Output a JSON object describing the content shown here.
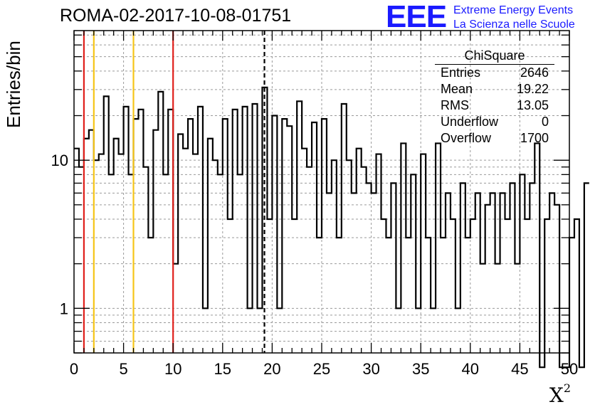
{
  "header": {
    "title": "ROMA-02-2017-10-08-01751",
    "logo_mark": "EEE",
    "logo_line1": "Extreme Energy Events",
    "logo_line2": "La Scienza nelle Scuole"
  },
  "stats_box": {
    "title": "ChiSquare",
    "rows": [
      {
        "label": "Entries",
        "value": "2646"
      },
      {
        "label": "Mean",
        "value": "19.22"
      },
      {
        "label": "RMS",
        "value": "13.05"
      },
      {
        "label": "Underflow",
        "value": "0"
      },
      {
        "label": "Overflow",
        "value": "1700"
      }
    ]
  },
  "colors": {
    "histogram": "#000000",
    "red_line": "#e0201b",
    "yellow_line": "#f5c518",
    "mean_line": "#000000",
    "grid": "#9a9a9a",
    "logo": "#1a1aff"
  },
  "chart_data": {
    "type": "bar",
    "histogram_style": "step",
    "xlabel_base": "X",
    "xlabel_sup": "2",
    "ylabel": "Entries/bin",
    "xlim": [
      0,
      50
    ],
    "ylim": [
      0.5,
      75
    ],
    "y_scale": "log",
    "grid": true,
    "bin_width": 0.5,
    "x_ticks": [
      "0",
      "5",
      "10",
      "15",
      "20",
      "25",
      "30",
      "35",
      "40",
      "45",
      "50"
    ],
    "y_ticks": [
      {
        "value": 1,
        "label": "1"
      },
      {
        "value": 10,
        "label": "10"
      }
    ],
    "values": [
      12,
      9,
      14,
      16,
      10,
      11,
      27,
      8,
      14,
      11,
      23,
      8,
      19,
      22,
      9,
      3,
      16,
      29,
      8,
      22,
      2,
      15,
      12,
      19,
      11,
      23,
      1,
      14,
      10,
      8,
      19,
      4,
      22,
      8,
      23,
      1,
      24,
      1,
      31,
      4,
      20,
      1,
      19,
      17,
      4,
      25,
      12,
      9,
      18,
      3,
      19,
      6,
      10,
      3,
      24,
      10,
      6,
      12,
      9,
      7,
      6,
      11,
      4,
      3,
      7,
      1,
      13,
      3,
      8,
      1,
      11,
      3,
      1,
      13,
      3,
      6,
      4,
      1,
      7,
      3,
      4,
      6,
      2,
      5,
      6,
      2,
      6,
      4,
      7,
      2,
      8,
      4,
      7,
      13,
      0.4,
      4,
      6,
      5,
      0.4,
      0.4,
      3,
      4,
      0.4,
      7
    ],
    "vertical_markers": [
      {
        "x": 1,
        "style": "red"
      },
      {
        "x": 2,
        "style": "yellow"
      },
      {
        "x": 6,
        "style": "yellow"
      },
      {
        "x": 10,
        "style": "red"
      },
      {
        "x": 19.22,
        "style": "mean-dashed"
      }
    ]
  }
}
